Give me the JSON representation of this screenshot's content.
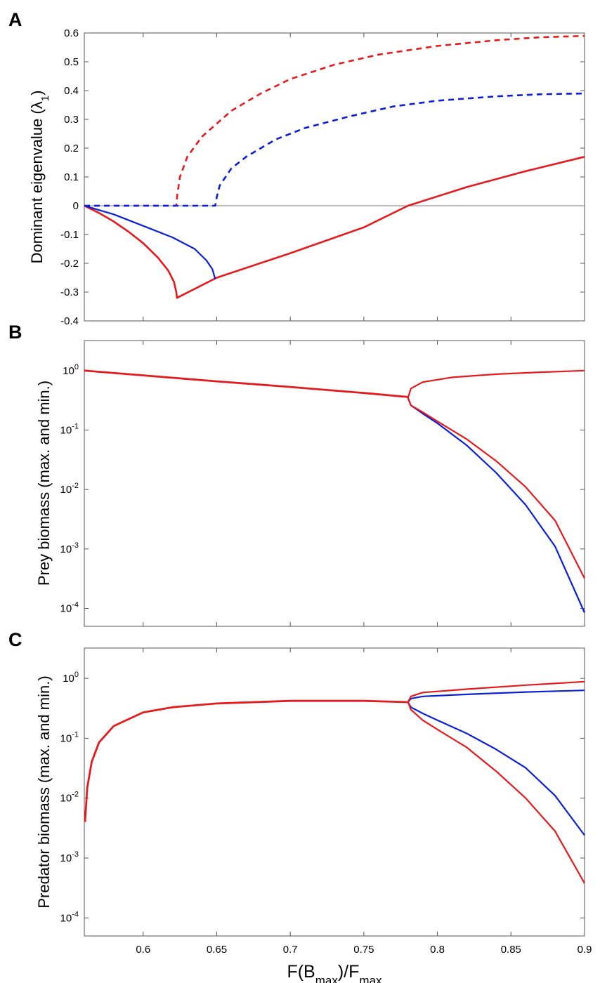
{
  "colors": {
    "red": "#e41a1c",
    "blue": "#0b1fd6"
  },
  "chart_data": [
    {
      "panel": "A",
      "type": "line",
      "ylabel": "Dominant eigenvalue (λ",
      "ylabel_sub": "1",
      "ylabel_close": ")",
      "xlim": [
        0.56,
        0.9
      ],
      "ylim": [
        -0.4,
        0.6
      ],
      "yscale": "linear",
      "yticks": [
        -0.4,
        -0.3,
        -0.2,
        -0.1,
        0,
        0.1,
        0.2,
        0.3,
        0.4,
        0.5,
        0.6
      ],
      "ytick_labels": [
        "-0.4",
        "-0.3",
        "-0.2",
        "-0.1",
        "0",
        "0.1",
        "0.2",
        "0.3",
        "0.4",
        "0.5",
        "0.6"
      ],
      "zero_line": true,
      "series": [
        {
          "name": "red-dashed",
          "color": "red",
          "dash": true,
          "width": 2.6,
          "points": [
            [
              0.56,
              0
            ],
            [
              0.6225,
              0
            ],
            [
              0.623,
              0.03
            ],
            [
              0.625,
              0.1
            ],
            [
              0.63,
              0.17
            ],
            [
              0.64,
              0.24
            ],
            [
              0.66,
              0.33
            ],
            [
              0.68,
              0.39
            ],
            [
              0.7,
              0.44
            ],
            [
              0.73,
              0.49
            ],
            [
              0.76,
              0.525
            ],
            [
              0.8,
              0.555
            ],
            [
              0.84,
              0.575
            ],
            [
              0.87,
              0.585
            ],
            [
              0.9,
              0.59
            ]
          ]
        },
        {
          "name": "blue-dashed",
          "color": "blue",
          "dash": true,
          "width": 2.6,
          "points": [
            [
              0.56,
              0
            ],
            [
              0.649,
              0
            ],
            [
              0.65,
              0.03
            ],
            [
              0.652,
              0.07
            ],
            [
              0.66,
              0.13
            ],
            [
              0.67,
              0.17
            ],
            [
              0.69,
              0.23
            ],
            [
              0.71,
              0.27
            ],
            [
              0.74,
              0.31
            ],
            [
              0.77,
              0.345
            ],
            [
              0.8,
              0.365
            ],
            [
              0.84,
              0.38
            ],
            [
              0.87,
              0.387
            ],
            [
              0.9,
              0.39
            ]
          ]
        },
        {
          "name": "red-solid",
          "color": "red",
          "dash": false,
          "width": 2.6,
          "points": [
            [
              0.56,
              0
            ],
            [
              0.57,
              -0.025
            ],
            [
              0.58,
              -0.055
            ],
            [
              0.59,
              -0.09
            ],
            [
              0.6,
              -0.13
            ],
            [
              0.61,
              -0.18
            ],
            [
              0.617,
              -0.225
            ],
            [
              0.621,
              -0.265
            ],
            [
              0.6225,
              -0.3
            ],
            [
              0.623,
              -0.32
            ],
            [
              0.65,
              -0.25
            ],
            [
              0.7,
              -0.165
            ],
            [
              0.75,
              -0.075
            ],
            [
              0.78,
              0
            ],
            [
              0.82,
              0.065
            ],
            [
              0.86,
              0.12
            ],
            [
              0.9,
              0.17
            ]
          ]
        },
        {
          "name": "blue-solid",
          "color": "blue",
          "dash": false,
          "width": 2.2,
          "points": [
            [
              0.56,
              0
            ],
            [
              0.58,
              -0.03
            ],
            [
              0.6,
              -0.07
            ],
            [
              0.62,
              -0.11
            ],
            [
              0.635,
              -0.15
            ],
            [
              0.643,
              -0.19
            ],
            [
              0.647,
              -0.22
            ],
            [
              0.649,
              -0.255
            ]
          ]
        }
      ]
    },
    {
      "panel": "B",
      "type": "line",
      "ylabel": "Prey biomass (max. and min.)",
      "xlim": [
        0.56,
        0.9
      ],
      "ylim": [
        5e-05,
        3.2
      ],
      "yscale": "log",
      "yticks": [
        0.0001,
        0.001,
        0.01,
        0.1,
        1
      ],
      "ytick_exponents": [
        "-4",
        "-3",
        "-2",
        "-1",
        "0"
      ],
      "series": [
        {
          "name": "red-upper",
          "color": "red",
          "dash": false,
          "width": 2.2,
          "points": [
            [
              0.78,
              0.35
            ],
            [
              0.782,
              0.5
            ],
            [
              0.79,
              0.64
            ],
            [
              0.81,
              0.77
            ],
            [
              0.84,
              0.87
            ],
            [
              0.87,
              0.94
            ],
            [
              0.9,
              1.0
            ]
          ]
        },
        {
          "name": "blue-lower",
          "color": "blue",
          "dash": false,
          "width": 2.2,
          "points": [
            [
              0.78,
              0.35
            ],
            [
              0.782,
              0.26
            ],
            [
              0.79,
              0.19
            ],
            [
              0.8,
              0.13
            ],
            [
              0.82,
              0.055
            ],
            [
              0.84,
              0.019
            ],
            [
              0.86,
              0.0055
            ],
            [
              0.88,
              0.0011
            ],
            [
              0.9,
              8.5e-05
            ]
          ]
        },
        {
          "name": "red-lower",
          "color": "red",
          "dash": false,
          "width": 2.2,
          "points": [
            [
              0.78,
              0.35
            ],
            [
              0.782,
              0.26
            ],
            [
              0.79,
              0.2
            ],
            [
              0.8,
              0.14
            ],
            [
              0.82,
              0.07
            ],
            [
              0.84,
              0.03
            ],
            [
              0.86,
              0.011
            ],
            [
              0.88,
              0.003
            ],
            [
              0.9,
              0.00032
            ]
          ]
        },
        {
          "name": "red-stable",
          "color": "red",
          "dash": false,
          "width": 2.8,
          "points": [
            [
              0.56,
              1.0
            ],
            [
              0.6,
              0.83
            ],
            [
              0.65,
              0.66
            ],
            [
              0.7,
              0.53
            ],
            [
              0.75,
              0.42
            ],
            [
              0.78,
              0.36
            ]
          ]
        }
      ]
    },
    {
      "panel": "C",
      "type": "line",
      "ylabel": "Predator biomass (max. and min.)",
      "xlabel_parts": [
        "F(B",
        "max",
        ")/F",
        "max"
      ],
      "xlim": [
        0.56,
        0.9
      ],
      "ylim": [
        5e-05,
        3.2
      ],
      "yscale": "log",
      "yticks": [
        0.0001,
        0.001,
        0.01,
        0.1,
        1
      ],
      "ytick_exponents": [
        "-4",
        "-3",
        "-2",
        "-1",
        "0"
      ],
      "xticks": [
        0.6,
        0.65,
        0.7,
        0.75,
        0.8,
        0.85,
        0.9
      ],
      "xtick_labels": [
        "0.6",
        "0.65",
        "0.7",
        "0.75",
        "0.8",
        "0.85",
        "0.9"
      ],
      "series": [
        {
          "name": "blue-upper",
          "color": "blue",
          "dash": false,
          "width": 2.2,
          "points": [
            [
              0.78,
              0.4
            ],
            [
              0.782,
              0.46
            ],
            [
              0.79,
              0.5
            ],
            [
              0.82,
              0.54
            ],
            [
              0.86,
              0.59
            ],
            [
              0.9,
              0.63
            ]
          ]
        },
        {
          "name": "red-upper",
          "color": "red",
          "dash": false,
          "width": 2.2,
          "points": [
            [
              0.78,
              0.4
            ],
            [
              0.782,
              0.5
            ],
            [
              0.79,
              0.58
            ],
            [
              0.82,
              0.66
            ],
            [
              0.86,
              0.77
            ],
            [
              0.9,
              0.88
            ]
          ]
        },
        {
          "name": "blue-lower",
          "color": "blue",
          "dash": false,
          "width": 2.2,
          "points": [
            [
              0.78,
              0.4
            ],
            [
              0.782,
              0.33
            ],
            [
              0.79,
              0.26
            ],
            [
              0.8,
              0.2
            ],
            [
              0.82,
              0.12
            ],
            [
              0.84,
              0.065
            ],
            [
              0.86,
              0.032
            ],
            [
              0.88,
              0.011
            ],
            [
              0.9,
              0.0024
            ]
          ]
        },
        {
          "name": "red-lower",
          "color": "red",
          "dash": false,
          "width": 2.2,
          "points": [
            [
              0.78,
              0.4
            ],
            [
              0.782,
              0.3
            ],
            [
              0.79,
              0.2
            ],
            [
              0.8,
              0.14
            ],
            [
              0.82,
              0.07
            ],
            [
              0.84,
              0.028
            ],
            [
              0.86,
              0.01
            ],
            [
              0.88,
              0.0028
            ],
            [
              0.9,
              0.00038
            ]
          ]
        },
        {
          "name": "red-stable",
          "color": "red",
          "dash": false,
          "width": 2.8,
          "points": [
            [
              0.5605,
              0.004
            ],
            [
              0.562,
              0.015
            ],
            [
              0.565,
              0.04
            ],
            [
              0.57,
              0.085
            ],
            [
              0.58,
              0.16
            ],
            [
              0.6,
              0.27
            ],
            [
              0.62,
              0.33
            ],
            [
              0.65,
              0.38
            ],
            [
              0.7,
              0.42
            ],
            [
              0.75,
              0.42
            ],
            [
              0.78,
              0.4
            ]
          ]
        }
      ]
    }
  ]
}
